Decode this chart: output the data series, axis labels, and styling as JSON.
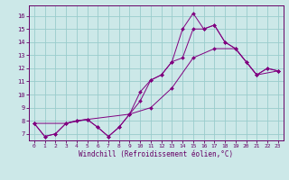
{
  "xlabel": "Windchill (Refroidissement éolien,°C)",
  "bg_color": "#cce8e8",
  "line_color": "#800080",
  "grid_color": "#99cccc",
  "xlim": [
    -0.5,
    23.5
  ],
  "ylim": [
    6.5,
    16.8
  ],
  "xticks": [
    0,
    1,
    2,
    3,
    4,
    5,
    6,
    7,
    8,
    9,
    10,
    11,
    12,
    13,
    14,
    15,
    16,
    17,
    18,
    19,
    20,
    21,
    22,
    23
  ],
  "yticks": [
    7,
    8,
    9,
    10,
    11,
    12,
    13,
    14,
    15,
    16
  ],
  "series1_x": [
    0,
    1,
    2,
    3,
    4,
    5,
    6,
    7,
    8,
    9,
    10,
    11,
    12,
    13,
    14,
    15,
    16,
    17,
    18,
    19,
    20,
    21,
    22,
    23
  ],
  "series1_y": [
    7.8,
    6.8,
    7.0,
    7.8,
    8.0,
    8.1,
    7.5,
    6.8,
    7.5,
    8.5,
    10.2,
    11.1,
    11.5,
    12.5,
    15.0,
    16.2,
    15.0,
    15.3,
    14.0,
    13.5,
    12.5,
    11.5,
    12.0,
    11.8
  ],
  "series2_x": [
    0,
    1,
    2,
    3,
    4,
    5,
    6,
    7,
    8,
    9,
    10,
    11,
    12,
    13,
    14,
    15,
    16,
    17,
    18,
    19,
    20,
    21,
    22,
    23
  ],
  "series2_y": [
    7.8,
    6.8,
    7.0,
    7.8,
    8.0,
    8.1,
    7.5,
    6.8,
    7.5,
    8.5,
    9.5,
    11.1,
    11.5,
    12.5,
    12.8,
    15.0,
    15.0,
    15.3,
    14.0,
    13.5,
    12.5,
    11.5,
    12.0,
    11.8
  ],
  "series3_x": [
    0,
    3,
    5,
    9,
    11,
    13,
    15,
    17,
    19,
    21,
    23
  ],
  "series3_y": [
    7.8,
    7.8,
    8.1,
    8.5,
    9.0,
    10.5,
    12.8,
    13.5,
    13.5,
    11.5,
    11.8
  ],
  "spine_color": "#660066",
  "tick_color": "#660066",
  "xlabel_fontsize": 5.5,
  "tick_fontsize": 4.5
}
